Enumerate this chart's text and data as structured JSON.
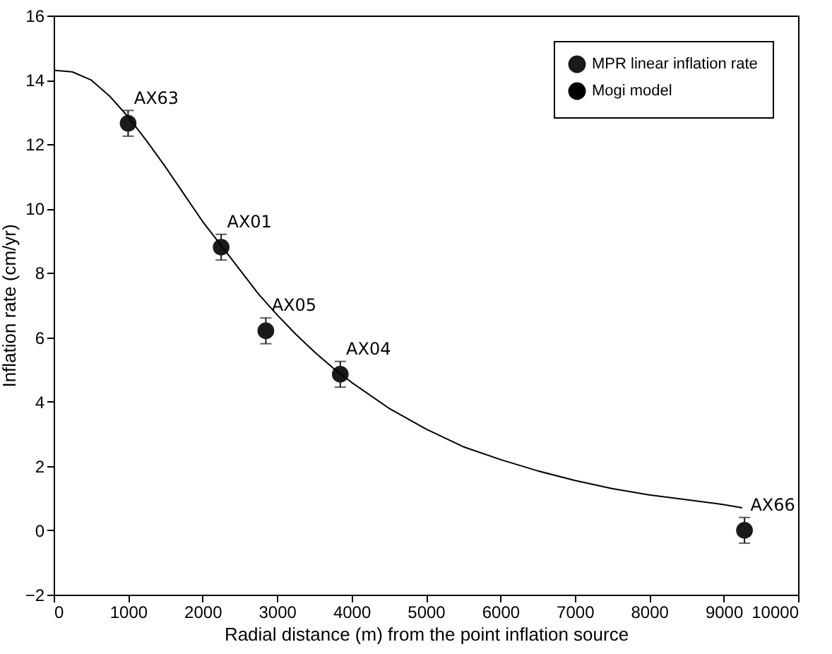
{
  "chart_data": {
    "type": "scatter",
    "xlabel": "Radial distance (m) from the point inflation source",
    "ylabel": "Inflation rate  (cm/yr)",
    "xlim": [
      0,
      10000
    ],
    "xticks": [
      0,
      1000,
      2000,
      3000,
      4000,
      5000,
      6000,
      7000,
      8000,
      9000,
      10000
    ],
    "ylim": [
      -2,
      16
    ],
    "yticks": [
      -2,
      0,
      2,
      4,
      6,
      8,
      10,
      12,
      14,
      16
    ],
    "grid": false,
    "legend": "top right",
    "marker": "circle",
    "series": [
      {
        "name": "MPR linear inflation rate",
        "color": "#1a1a1a",
        "x": [
          1000,
          2250,
          2850,
          3850,
          9280
        ],
        "values": [
          12.65,
          8.8,
          6.2,
          4.85,
          0
        ],
        "errors": [
          0.4,
          0.4,
          0.4,
          0.4,
          0.4
        ]
      },
      {
        "name": "Mogi model",
        "type": "line",
        "color": "#000000",
        "marker": "none",
        "line_style": "solid",
        "x": [
          0,
          250,
          500,
          750,
          1000,
          1250,
          1500,
          1750,
          2000,
          2250,
          2500,
          2750,
          3000,
          3250,
          3500,
          3750,
          4000,
          4500,
          5000,
          5500,
          6000,
          6500,
          7000,
          7500,
          8000,
          8500,
          9000,
          9250
        ],
        "values": [
          14.3,
          14.25,
          14.0,
          13.5,
          12.85,
          12.1,
          11.3,
          10.45,
          9.6,
          8.85,
          8.1,
          7.35,
          6.7,
          6.1,
          5.55,
          5.05,
          4.6,
          3.8,
          3.15,
          2.6,
          2.2,
          1.85,
          1.55,
          1.3,
          1.1,
          0.95,
          0.8,
          0.7
        ]
      }
    ],
    "annotations": [
      {
        "text": "AX63",
        "x": 1000,
        "y": 12.65
      },
      {
        "text": "AX01",
        "x": 2250,
        "y": 8.8
      },
      {
        "text": "AX05",
        "x": 2850,
        "y": 6.2
      },
      {
        "text": "AX04",
        "x": 3850,
        "y": 4.85
      },
      {
        "text": "AX66",
        "x": 9280,
        "y": 0
      }
    ]
  }
}
